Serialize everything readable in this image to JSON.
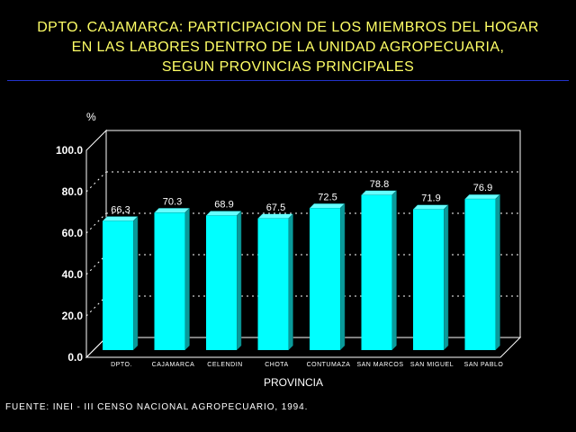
{
  "title_lines": [
    "DPTO. CAJAMARCA: PARTICIPACION DE LOS MIEMBROS DEL HOGAR",
    "EN LAS LABORES DENTRO DE LA UNIDAD AGROPECUARIA,",
    "SEGUN PROVINCIAS PRINCIPALES"
  ],
  "source": "FUENTE: INEI - III CENSO NACIONAL AGROPECUARIO, 1994.",
  "colors": {
    "background": "#000000",
    "title": "#ffff66",
    "bar_front": "#00ffff",
    "bar_side": "#0a9a9a",
    "bar_top": "#66ffff",
    "frame": "#ffffff",
    "rule": "#2233cc"
  },
  "chart_data": {
    "type": "bar",
    "title": "DPTO. CAJAMARCA: PARTICIPACION DE LOS MIEMBROS DEL HOGAR EN LAS LABORES DENTRO DE LA UNIDAD AGROPECUARIA, SEGUN PROVINCIAS PRINCIPALES",
    "xlabel": "PROVINCIA",
    "ylabel": "%",
    "categories": [
      "DPTO.",
      "CAJAMARCA",
      "CELENDIN",
      "CHOTA",
      "CONTUMAZA",
      "SAN MARCOS",
      "SAN MIGUEL",
      "SAN PABLO"
    ],
    "values": [
      66.3,
      70.3,
      68.9,
      67.5,
      72.5,
      78.8,
      71.9,
      76.9
    ],
    "value_labels": [
      "66.3",
      "70.3",
      "68.9",
      "67.5",
      "72.5",
      "78.8",
      "71.9",
      "76.9"
    ],
    "ylim": [
      0,
      100
    ],
    "yticks": [
      "0.0",
      "20.0",
      "40.0",
      "60.0",
      "80.0",
      "100.0"
    ],
    "grid": true,
    "style": "3d"
  }
}
